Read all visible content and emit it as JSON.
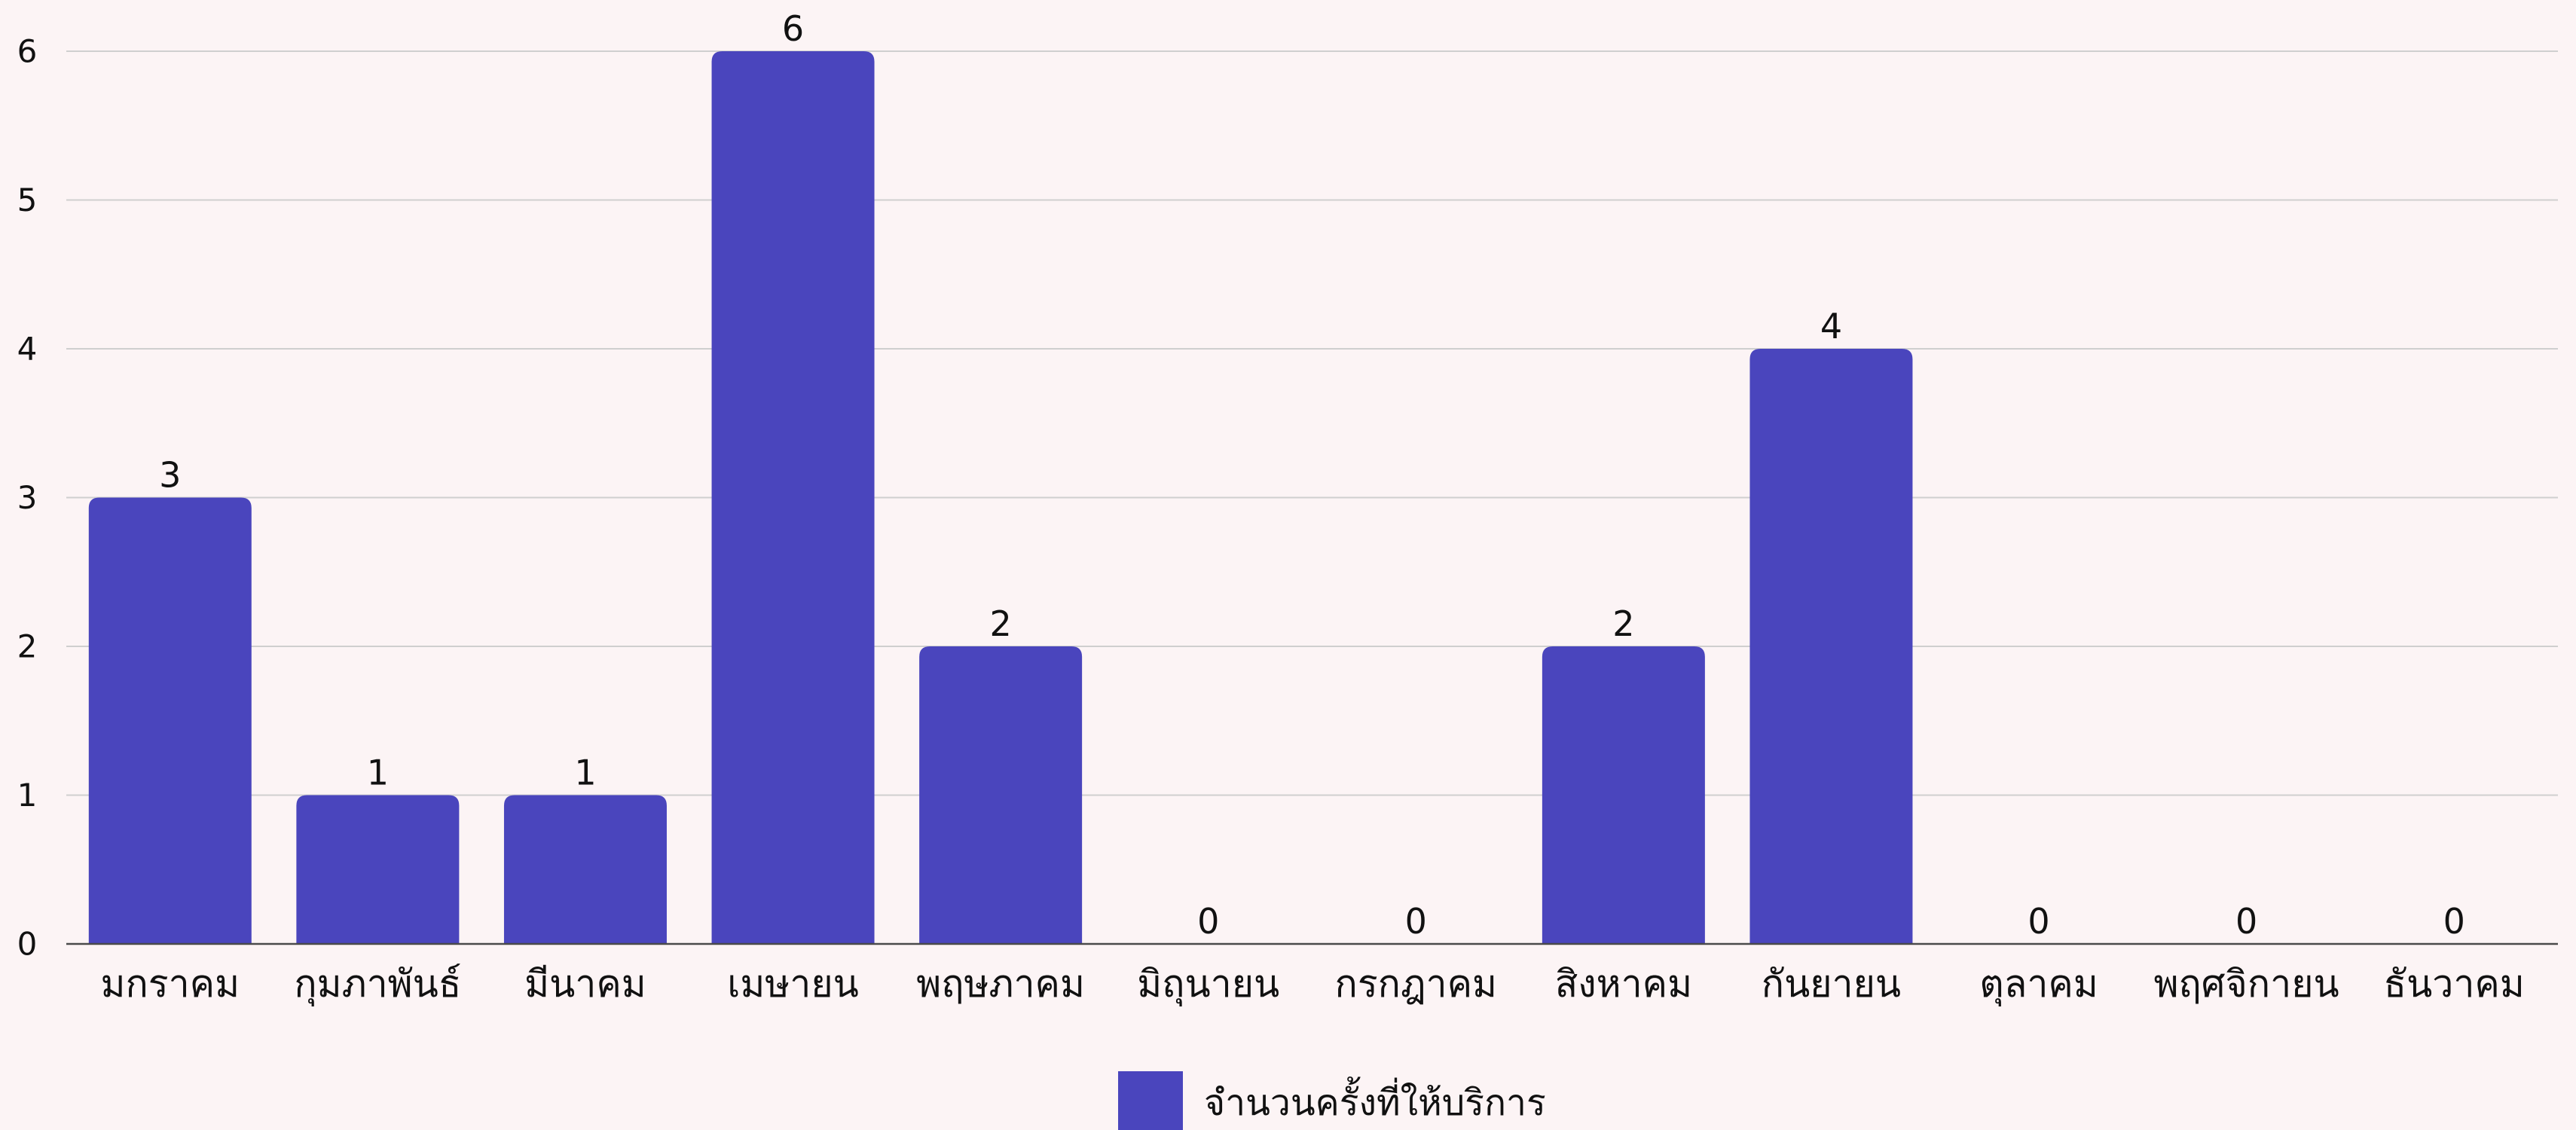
{
  "chart_data": {
    "type": "bar",
    "categories": [
      "มกราคม",
      "กุมภาพันธ์",
      "มีนาคม",
      "เมษายน",
      "พฤษภาคม",
      "มิถุนายน",
      "กรกฎาคม",
      "สิงหาคม",
      "กันยายน",
      "ตุลาคม",
      "พฤศจิกายน",
      "ธันวาคม"
    ],
    "series": [
      {
        "name": "จำนวนครั้งที่ให้บริการ",
        "values": [
          3,
          1,
          1,
          6,
          2,
          0,
          0,
          2,
          4,
          0,
          0,
          0
        ],
        "color": "#4a45bd"
      }
    ],
    "yticks": [
      "0",
      "1",
      "2",
      "3",
      "4",
      "5",
      "6"
    ],
    "ylim": [
      0,
      6
    ],
    "grid": true,
    "legend_position": "bottom-center",
    "data_labels": true
  }
}
